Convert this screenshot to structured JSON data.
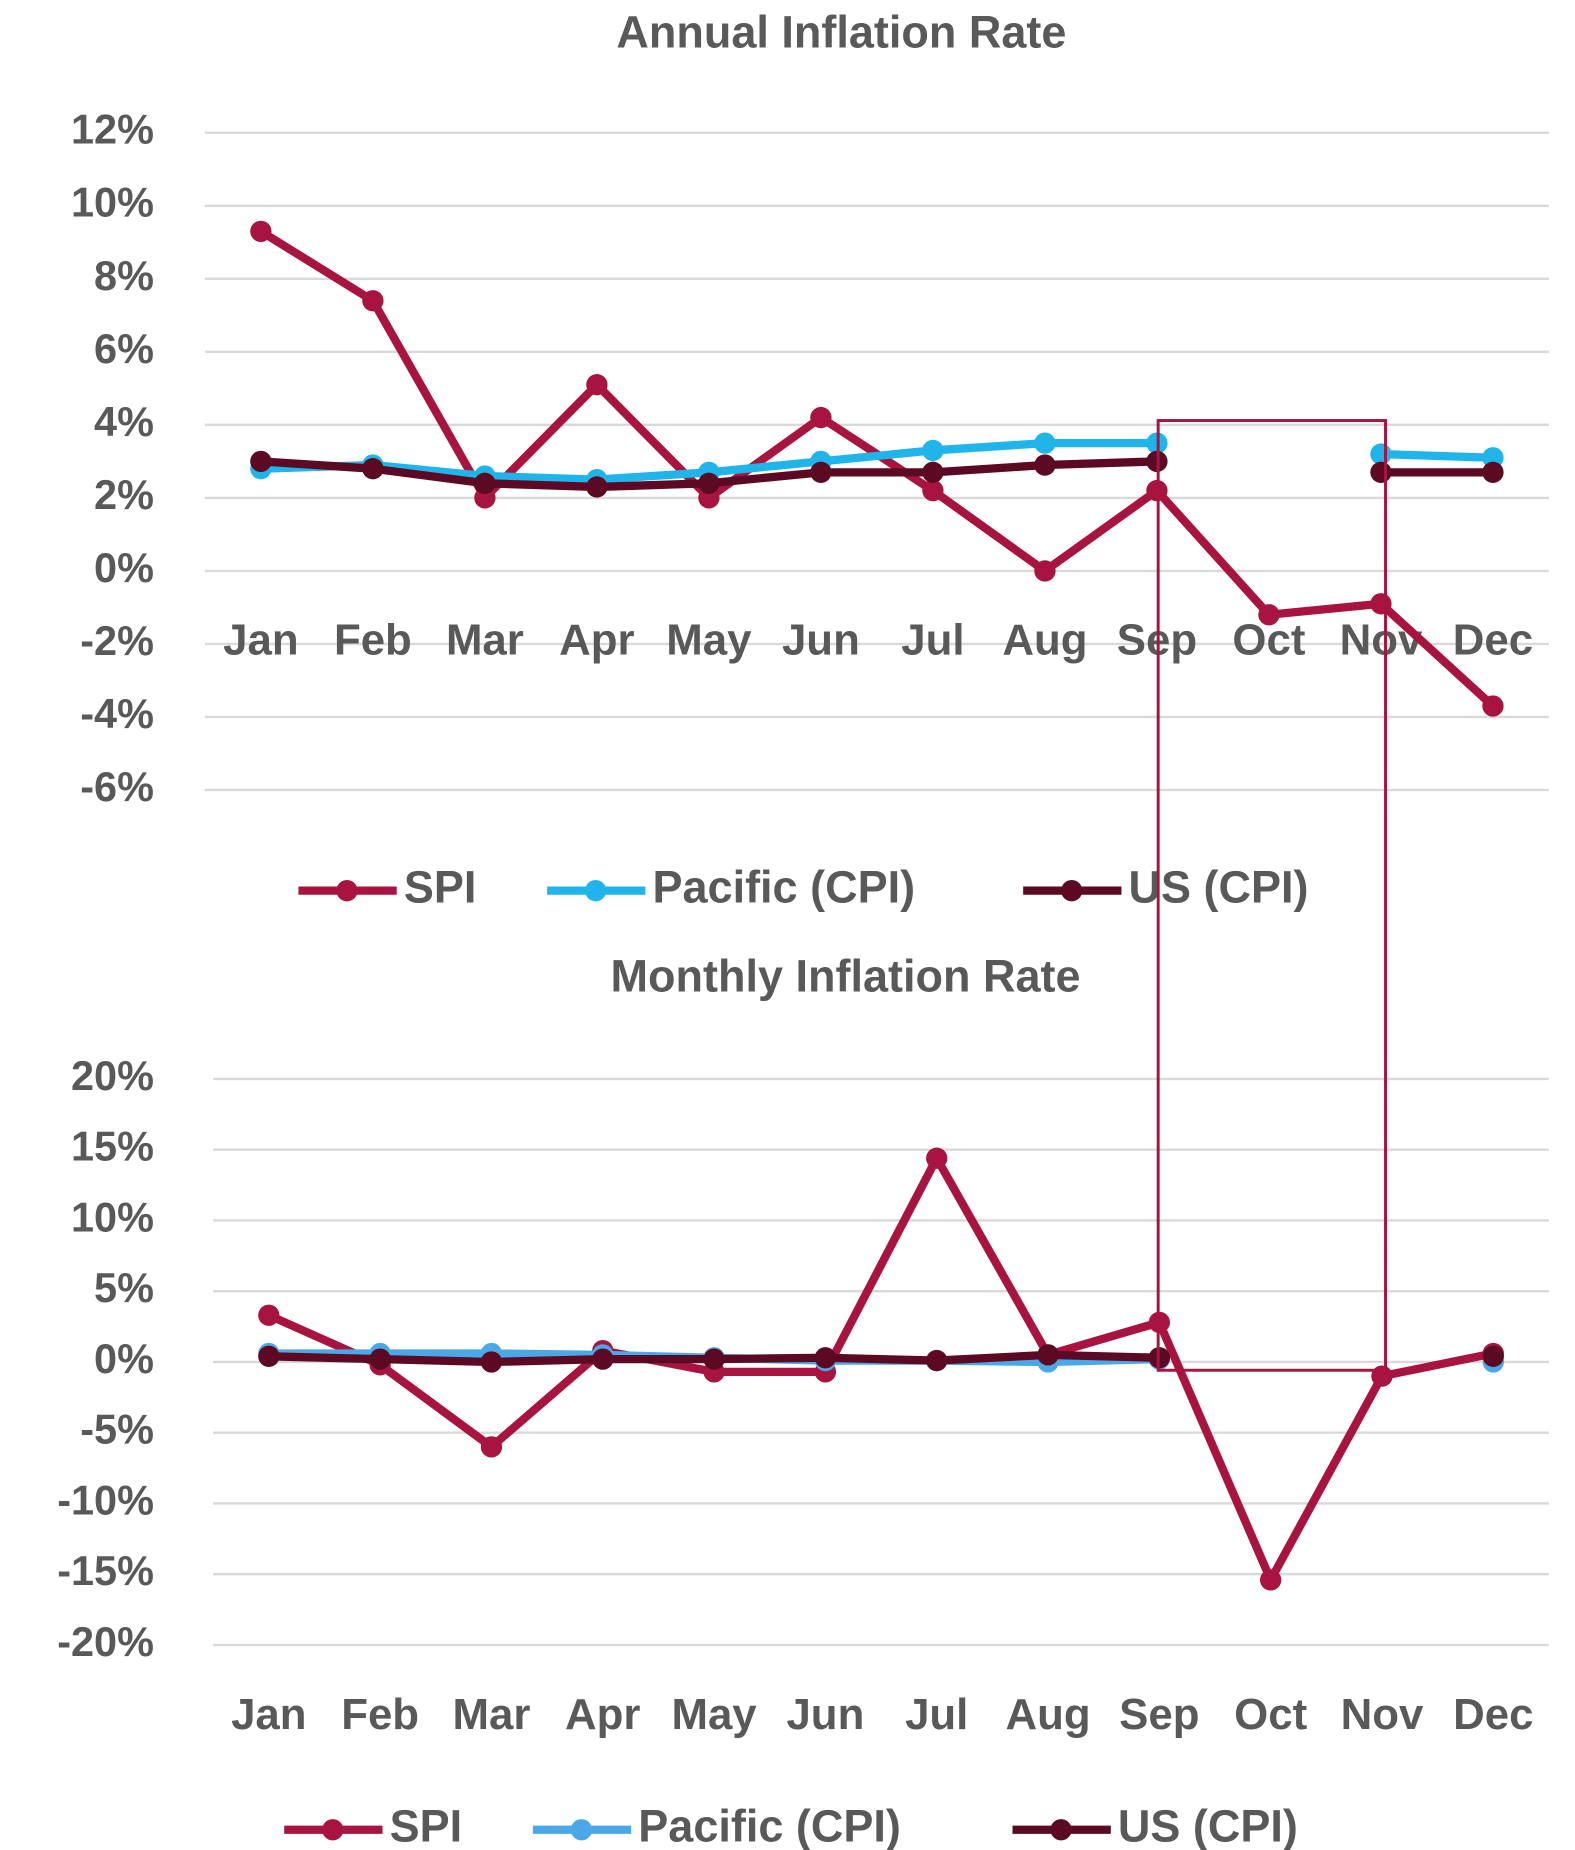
{
  "chart_data": [
    {
      "type": "line",
      "title": "Annual Inflation Rate",
      "categories": [
        "Jan",
        "Feb",
        "Mar",
        "Apr",
        "May",
        "Jun",
        "Jul",
        "Aug",
        "Sep",
        "Oct",
        "Nov",
        "Dec"
      ],
      "series": [
        {
          "name": "SPI",
          "color": "#a8143f",
          "values": [
            9.3,
            7.4,
            2.0,
            5.1,
            2.0,
            4.2,
            2.2,
            0.0,
            2.2,
            -1.2,
            -0.9,
            -3.7
          ]
        },
        {
          "name": "Pacific (CPI)",
          "color": "#1fb4ea",
          "values": [
            2.8,
            2.9,
            2.6,
            2.5,
            2.7,
            3.0,
            3.3,
            3.5,
            3.5,
            null,
            3.2,
            3.1
          ]
        },
        {
          "name": "US (CPI)",
          "color": "#5c0a23",
          "values": [
            3.0,
            2.8,
            2.4,
            2.3,
            2.4,
            2.7,
            2.7,
            2.9,
            3.0,
            null,
            2.7,
            2.7
          ]
        }
      ],
      "ylim": [
        -6,
        12
      ],
      "yticks": [
        {
          "value": -6,
          "label": "-6%"
        },
        {
          "value": -4,
          "label": "-4%"
        },
        {
          "value": -2,
          "label": "-2%"
        },
        {
          "value": 0,
          "label": "0%"
        },
        {
          "value": 2,
          "label": "2%"
        },
        {
          "value": 4,
          "label": "4%"
        },
        {
          "value": 6,
          "label": "6%"
        },
        {
          "value": 8,
          "label": "8%"
        },
        {
          "value": 10,
          "label": "10%"
        },
        {
          "value": 12,
          "label": "12%"
        }
      ],
      "grid": true,
      "legend": "bottom"
    },
    {
      "type": "line",
      "title": "Monthly Inflation Rate",
      "categories": [
        "Jan",
        "Feb",
        "Mar",
        "Apr",
        "May",
        "Jun",
        "Jul",
        "Aug",
        "Sep",
        "Oct",
        "Nov",
        "Dec"
      ],
      "series": [
        {
          "name": "SPI",
          "color": "#a8143f",
          "values": [
            3.3,
            -0.2,
            -6.0,
            0.8,
            -0.7,
            -0.7,
            14.4,
            0.5,
            2.8,
            -15.4,
            -1.0,
            0.6
          ]
        },
        {
          "name": "Pacific (CPI)",
          "color": "#4aa8e8",
          "values": [
            0.6,
            0.6,
            0.6,
            0.5,
            0.3,
            0.1,
            0.1,
            0.0,
            0.2,
            null,
            null,
            0.0
          ]
        },
        {
          "name": "US (CPI)",
          "color": "#5c0a23",
          "values": [
            0.4,
            0.2,
            0.0,
            0.2,
            0.2,
            0.3,
            0.1,
            0.5,
            0.3,
            null,
            null,
            0.4
          ]
        }
      ],
      "ylim": [
        -20,
        20
      ],
      "yticks": [
        {
          "value": -20,
          "label": "-20%"
        },
        {
          "value": -15,
          "label": "-15%"
        },
        {
          "value": -10,
          "label": "-10%"
        },
        {
          "value": -5,
          "label": "-5%"
        },
        {
          "value": 0,
          "label": "0%"
        },
        {
          "value": 5,
          "label": "5%"
        },
        {
          "value": 10,
          "label": "10%"
        },
        {
          "value": 15,
          "label": "15%"
        },
        {
          "value": 20,
          "label": "20%"
        }
      ],
      "grid": true,
      "legend": "bottom"
    }
  ]
}
